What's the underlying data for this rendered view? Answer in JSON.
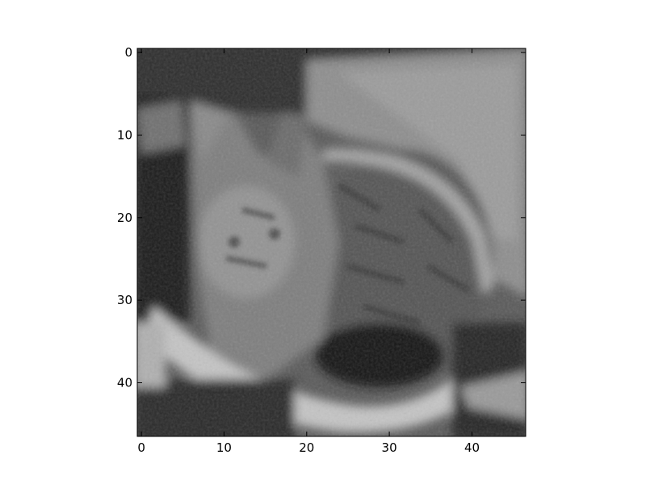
{
  "image": {
    "subject": "cat",
    "colormap": "gray",
    "x_range": [
      -0.5,
      46.5
    ],
    "y_range": [
      -0.5,
      46.5
    ],
    "y_axis_inverted": true
  },
  "axes": {
    "x_ticks": [
      "0",
      "10",
      "20",
      "30",
      "40"
    ],
    "y_ticks": [
      "0",
      "10",
      "20",
      "30",
      "40"
    ]
  },
  "colors": {
    "background": "#ffffff",
    "frame": "#000000"
  }
}
